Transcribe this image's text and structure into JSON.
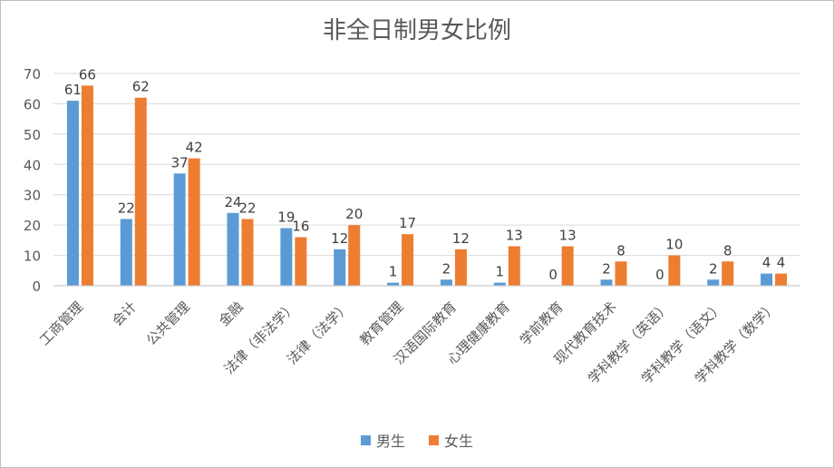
{
  "chart_data": {
    "type": "bar",
    "title": "非全日制男女比例",
    "categories": [
      "工商管理",
      "会计",
      "公共管理",
      "金融",
      "法律（非法学）",
      "法律（法学）",
      "教育管理",
      "汉语国际教育",
      "心理健康教育",
      "学前教育",
      "现代教育技术",
      "学科教学（英语）",
      "学科教学（语文）",
      "学科教学（数学）"
    ],
    "series": [
      {
        "name": "男生",
        "color": "#5B9BD5",
        "values": [
          61,
          22,
          37,
          24,
          19,
          12,
          1,
          2,
          1,
          0,
          2,
          0,
          2,
          4
        ]
      },
      {
        "name": "女生",
        "color": "#ED7D31",
        "values": [
          66,
          62,
          42,
          22,
          16,
          20,
          17,
          12,
          13,
          13,
          8,
          10,
          8,
          4
        ]
      }
    ],
    "xlabel": "",
    "ylabel": "",
    "ylim": [
      0,
      70
    ],
    "yticks": [
      0,
      10,
      20,
      30,
      40,
      50,
      60,
      70
    ],
    "grid": true,
    "data_labels": true,
    "legend_position": "bottom"
  }
}
